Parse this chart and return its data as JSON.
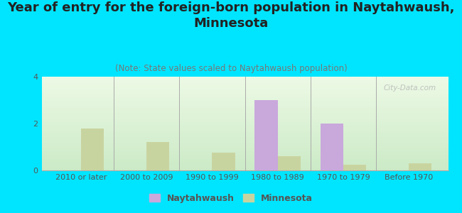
{
  "title": "Year of entry for the foreign-born population in Naytahwaush,\nMinnesota",
  "subtitle": "(Note: State values scaled to Naytahwaush population)",
  "categories": [
    "2010 or later",
    "2000 to 2009",
    "1990 to 1999",
    "1980 to 1989",
    "1970 to 1979",
    "Before 1970"
  ],
  "naytahwaush_values": [
    0,
    0,
    0,
    3.0,
    2.0,
    0
  ],
  "minnesota_values": [
    1.8,
    1.2,
    0.75,
    0.6,
    0.25,
    0.3
  ],
  "naytahwaush_color": "#c9a8dc",
  "minnesota_color": "#c8d4a0",
  "background_outer": "#00e5ff",
  "ylim": [
    0,
    4
  ],
  "yticks": [
    0,
    2,
    4
  ],
  "bar_width": 0.35,
  "watermark": "City-Data.com",
  "legend_naytahwaush": "Naytahwaush",
  "legend_minnesota": "Minnesota",
  "title_fontsize": 13,
  "subtitle_fontsize": 8.5,
  "tick_fontsize": 8,
  "legend_fontsize": 9
}
